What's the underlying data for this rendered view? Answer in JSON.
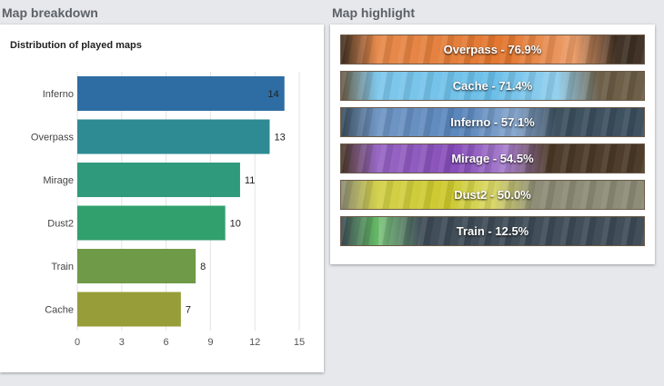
{
  "left": {
    "section_title": "Map breakdown",
    "chart_title": "Distribution of played maps"
  },
  "chart_data": {
    "type": "bar",
    "orientation": "horizontal",
    "title": "Distribution of played maps",
    "categories": [
      "Inferno",
      "Overpass",
      "Mirage",
      "Dust2",
      "Train",
      "Cache"
    ],
    "values": [
      14,
      13,
      11,
      10,
      8,
      7
    ],
    "colors": [
      "#2e6da3",
      "#2e8a93",
      "#2f9a7c",
      "#31a06d",
      "#6f9a47",
      "#979d38"
    ],
    "xticks": [
      "0",
      "3",
      "6",
      "9",
      "12",
      "15"
    ],
    "xlim": [
      0,
      15
    ],
    "grid": true,
    "legend": false
  },
  "right": {
    "section_title": "Map highlight",
    "rows": [
      {
        "label": "Overpass - 76.9%",
        "bg": "#3d2f22",
        "fill": "#e06a1c",
        "fill_pct": 76.9
      },
      {
        "label": "Cache - 71.4%",
        "bg": "#6a5b44",
        "fill": "#5cb8e6",
        "fill_pct": 71.4
      },
      {
        "label": "Inferno - 57.1%",
        "bg": "#3a4d5c",
        "fill": "#4a7ab5",
        "fill_pct": 57.1
      },
      {
        "label": "Mirage - 54.5%",
        "bg": "#4a3826",
        "fill": "#7b3db3",
        "fill_pct": 54.5
      },
      {
        "label": "Dust2 - 50.0%",
        "bg": "#8a8a74",
        "fill": "#c7c41a",
        "fill_pct": 50.0
      },
      {
        "label": "Train - 12.5%",
        "bg": "#3d4a55",
        "fill": "#3aa63a",
        "fill_pct": 12.5
      }
    ]
  }
}
